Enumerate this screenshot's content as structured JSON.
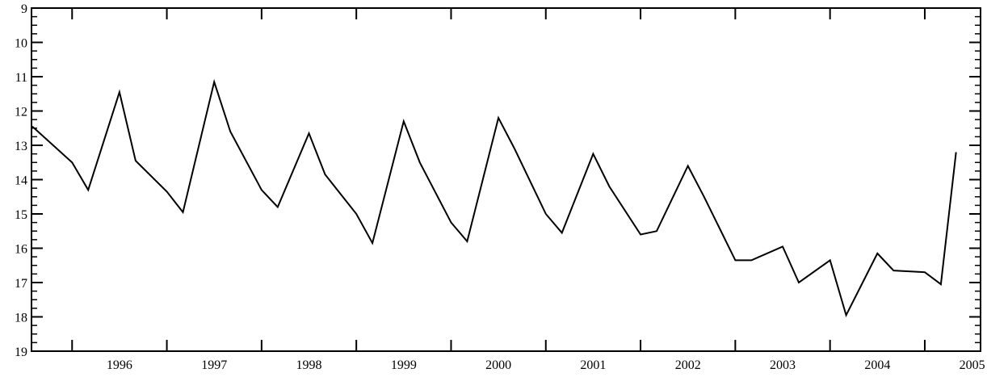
{
  "chart_data": {
    "type": "line",
    "title": "",
    "xlabel": "",
    "ylabel": "",
    "y_inverted": true,
    "ylim": [
      9,
      19
    ],
    "xlim": [
      1995.58,
      2005.33
    ],
    "grid": false,
    "legend": "none",
    "line_color": "#000000",
    "x_tick_labels": [
      "1996",
      "1997",
      "1998",
      "1999",
      "2000",
      "2001",
      "2002",
      "2003",
      "2004",
      "2005"
    ],
    "y_tick_labels": [
      "9",
      "10",
      "11",
      "12",
      "13",
      "14",
      "15",
      "16",
      "17",
      "18",
      "19"
    ],
    "series": [
      {
        "x": [
          1995.58,
          1996.0,
          1996.17,
          1996.5,
          1996.67,
          1997.0,
          1997.17,
          1997.5,
          1997.67,
          1998.0,
          1998.17,
          1998.5,
          1998.67,
          1999.0,
          1999.17,
          1999.5,
          1999.67,
          2000.0,
          2000.17,
          2000.5,
          2000.67,
          2001.0,
          2001.17,
          2001.5,
          2001.67,
          2002.0,
          2002.17,
          2002.5,
          2002.67,
          2003.0,
          2003.17,
          2003.5,
          2003.67,
          2004.0,
          2004.17,
          2004.5,
          2004.67,
          2005.0,
          2005.17,
          2005.33
        ],
        "y": [
          12.45,
          13.5,
          14.3,
          11.45,
          13.45,
          14.35,
          14.95,
          11.15,
          12.6,
          14.3,
          14.8,
          12.65,
          13.85,
          15.0,
          15.85,
          12.3,
          13.5,
          15.25,
          15.8,
          12.2,
          13.1,
          15.0,
          15.55,
          13.25,
          14.2,
          15.6,
          15.5,
          13.6,
          14.5,
          16.35,
          16.35,
          15.95,
          17.0,
          16.35,
          17.95,
          16.15,
          16.65,
          16.7,
          17.05,
          13.2
        ]
      }
    ]
  }
}
